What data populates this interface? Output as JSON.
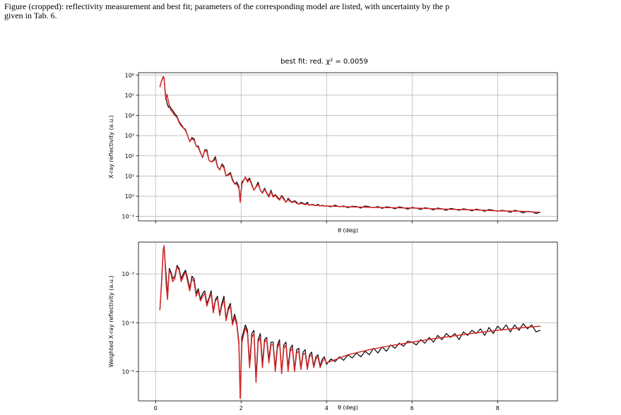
{
  "caption": {
    "line1": "Figure (cropped): reflectivity measurement and best fit; parameters of the corresponding model are listed, with uncertainty by the p",
    "line2": "given in Tab. 6."
  },
  "colors": {
    "measured": "#000000",
    "fit": "#d62728",
    "grid": "#b0b0b0"
  },
  "chart_data": [
    {
      "type": "line",
      "title": "best fit: red. χ² = 0.0059",
      "xlabel": "θ (deg)",
      "ylabel": "X-ray reflectivity (a.u.)",
      "yscale": "log",
      "xlim": [
        -0.4,
        9.4
      ],
      "ylim": [
        0.06,
        1300000
      ],
      "xticks": [
        0,
        2,
        4,
        6,
        8
      ],
      "show_xticklabels": false,
      "yticks": [
        0.1,
        1,
        10,
        100,
        1000,
        10000,
        100000,
        1000000
      ],
      "ytick_labels": [
        "10⁻¹",
        "10⁰",
        "10¹",
        "10²",
        "10³",
        "10⁴",
        "10⁵",
        "10⁶"
      ],
      "grid": true,
      "series": [
        {
          "color": "#000000",
          "style": "measured",
          "x": [
            0.1,
            0.14,
            0.18,
            0.2,
            0.22,
            0.24,
            0.27,
            0.3,
            0.33,
            0.36,
            0.4,
            0.45,
            0.5,
            0.55,
            0.6,
            0.65,
            0.7,
            0.75,
            0.8,
            0.85,
            0.9,
            0.95,
            1.0,
            1.05,
            1.1,
            1.15,
            1.2,
            1.25,
            1.3,
            1.35,
            1.4,
            1.45,
            1.5,
            1.55,
            1.6,
            1.65,
            1.7,
            1.75,
            1.8,
            1.85,
            1.9,
            1.95,
            1.98,
            2.02,
            2.1,
            2.15,
            2.2,
            2.25,
            2.3,
            2.35,
            2.4,
            2.45,
            2.5,
            2.55,
            2.6,
            2.65,
            2.7,
            2.75,
            2.8,
            2.85,
            2.9,
            2.95,
            3.0,
            3.05,
            3.1,
            3.15,
            3.2,
            3.25,
            3.3,
            3.35,
            3.4,
            3.45,
            3.5,
            3.55,
            3.6,
            3.65,
            3.7,
            3.75,
            3.8,
            3.85,
            3.9,
            3.95,
            4.0,
            4.1,
            4.2,
            4.3,
            4.4,
            4.5,
            4.6,
            4.7,
            4.8,
            4.9,
            5.0,
            5.1,
            5.2,
            5.3,
            5.4,
            5.5,
            5.6,
            5.7,
            5.8,
            5.9,
            6.0,
            6.1,
            6.2,
            6.3,
            6.4,
            6.5,
            6.6,
            6.7,
            6.8,
            6.9,
            7.0,
            7.1,
            7.2,
            7.3,
            7.4,
            7.5,
            7.6,
            7.7,
            7.8,
            7.9,
            8.0,
            8.1,
            8.2,
            8.3,
            8.4,
            8.5,
            8.6,
            8.7,
            8.8,
            8.9,
            9.0
          ],
          "y": [
            250000,
            500000,
            800000,
            650000,
            200000,
            90000,
            40000,
            25000,
            30000,
            22000,
            18000,
            12000,
            9000,
            5000,
            3500,
            2500,
            2000,
            1000,
            500,
            800,
            700,
            300,
            300,
            150,
            80,
            200,
            200,
            60,
            50,
            60,
            90,
            30,
            20,
            40,
            30,
            10,
            12,
            15,
            7,
            4,
            5,
            3,
            0.6,
            5,
            8,
            6,
            8,
            4,
            2,
            3,
            5,
            2,
            1.5,
            2.5,
            1.5,
            1.0,
            2.0,
            1.0,
            1.2,
            0.9,
            0.7,
            1.1,
            0.8,
            0.5,
            0.8,
            0.6,
            0.5,
            0.6,
            0.5,
            0.4,
            0.5,
            0.45,
            0.4,
            0.5,
            0.35,
            0.4,
            0.38,
            0.35,
            0.4,
            0.33,
            0.36,
            0.32,
            0.34,
            0.3,
            0.36,
            0.3,
            0.33,
            0.27,
            0.32,
            0.31,
            0.26,
            0.33,
            0.3,
            0.27,
            0.31,
            0.25,
            0.3,
            0.28,
            0.24,
            0.3,
            0.27,
            0.23,
            0.28,
            0.26,
            0.22,
            0.27,
            0.25,
            0.21,
            0.26,
            0.24,
            0.2,
            0.25,
            0.23,
            0.2,
            0.24,
            0.22,
            0.19,
            0.23,
            0.21,
            0.18,
            0.22,
            0.2,
            0.18,
            0.2,
            0.19,
            0.16,
            0.2,
            0.18,
            0.15,
            0.18,
            0.17,
            0.14,
            0.16
          ]
        },
        {
          "color": "#d62728",
          "style": "fit",
          "x": [
            0.1,
            0.14,
            0.18,
            0.2,
            0.22,
            0.24,
            0.27,
            0.3,
            0.33,
            0.36,
            0.4,
            0.45,
            0.5,
            0.55,
            0.6,
            0.65,
            0.7,
            0.75,
            0.8,
            0.85,
            0.9,
            0.95,
            1.0,
            1.05,
            1.1,
            1.15,
            1.2,
            1.25,
            1.3,
            1.35,
            1.4,
            1.45,
            1.5,
            1.55,
            1.6,
            1.65,
            1.7,
            1.75,
            1.8,
            1.85,
            1.9,
            1.95,
            1.98,
            2.02,
            2.1,
            2.15,
            2.2,
            2.25,
            2.3,
            2.35,
            2.4,
            2.45,
            2.5,
            2.55,
            2.6,
            2.65,
            2.7,
            2.75,
            2.8,
            2.85,
            2.9,
            2.95,
            3.0,
            3.05,
            3.1,
            3.15,
            3.2,
            3.25,
            3.3,
            3.35,
            3.4,
            3.45,
            3.5,
            3.55,
            3.6,
            3.65,
            3.7,
            3.75,
            3.8,
            3.85,
            3.9,
            3.95,
            4.0,
            4.5,
            5.0,
            5.5,
            6.0,
            6.5,
            7.0,
            7.5,
            8.0,
            8.5,
            9.0
          ],
          "y": [
            250000,
            520000,
            850000,
            700000,
            180000,
            60000,
            110000,
            50000,
            25000,
            18000,
            14000,
            10000,
            8000,
            4500,
            3000,
            2400,
            1800,
            1000,
            500,
            700,
            600,
            300,
            260,
            140,
            90,
            180,
            160,
            60,
            50,
            55,
            70,
            28,
            20,
            35,
            25,
            10,
            11,
            13,
            6,
            4,
            4,
            2.5,
            0.5,
            4,
            9,
            5,
            7,
            3.5,
            2,
            2.8,
            4,
            2,
            1.4,
            2.2,
            1.4,
            0.9,
            1.7,
            0.9,
            1.1,
            0.8,
            0.65,
            1.0,
            0.7,
            0.5,
            0.7,
            0.55,
            0.48,
            0.55,
            0.45,
            0.4,
            0.45,
            0.42,
            0.38,
            0.42,
            0.36,
            0.38,
            0.36,
            0.34,
            0.36,
            0.33,
            0.34,
            0.32,
            0.33,
            0.3,
            0.28,
            0.27,
            0.26,
            0.24,
            0.22,
            0.21,
            0.19,
            0.18,
            0.16
          ]
        }
      ]
    },
    {
      "type": "line",
      "title": "",
      "xlabel": "θ (deg)",
      "ylabel": "Weighted X-ray reflectivity (a.u.)",
      "yscale": "log",
      "xlim": [
        -0.4,
        9.4
      ],
      "ylim": [
        2.5e-06,
        0.0045
      ],
      "xticks": [
        0,
        2,
        4,
        6,
        8
      ],
      "show_xticklabels": true,
      "xtick_labels": [
        "0",
        "2",
        "4",
        "6",
        "8"
      ],
      "yticks": [
        1e-05,
        0.0001,
        0.001
      ],
      "ytick_labels": [
        "10⁻⁵",
        "10⁻⁴",
        "10⁻³"
      ],
      "grid": true,
      "series": [
        {
          "color": "#000000",
          "style": "measured",
          "x": [
            0.1,
            0.14,
            0.18,
            0.2,
            0.22,
            0.25,
            0.28,
            0.32,
            0.36,
            0.4,
            0.45,
            0.5,
            0.55,
            0.6,
            0.65,
            0.7,
            0.75,
            0.8,
            0.85,
            0.9,
            0.95,
            1.0,
            1.05,
            1.1,
            1.15,
            1.2,
            1.25,
            1.3,
            1.35,
            1.4,
            1.45,
            1.5,
            1.55,
            1.6,
            1.65,
            1.7,
            1.75,
            1.8,
            1.85,
            1.9,
            1.95,
            1.98,
            2.02,
            2.1,
            2.15,
            2.2,
            2.25,
            2.3,
            2.35,
            2.4,
            2.45,
            2.5,
            2.55,
            2.6,
            2.65,
            2.7,
            2.75,
            2.8,
            2.85,
            2.9,
            2.95,
            3.0,
            3.05,
            3.1,
            3.15,
            3.2,
            3.25,
            3.3,
            3.35,
            3.4,
            3.45,
            3.5,
            3.55,
            3.6,
            3.65,
            3.7,
            3.75,
            3.8,
            3.85,
            3.9,
            3.95,
            4.0,
            4.1,
            4.2,
            4.3,
            4.4,
            4.5,
            4.6,
            4.7,
            4.8,
            4.9,
            5.0,
            5.1,
            5.2,
            5.3,
            5.4,
            5.5,
            5.6,
            5.7,
            5.8,
            5.9,
            6.0,
            6.1,
            6.2,
            6.3,
            6.4,
            6.5,
            6.6,
            6.7,
            6.8,
            6.9,
            7.0,
            7.1,
            7.2,
            7.3,
            7.4,
            7.5,
            7.6,
            7.7,
            7.8,
            7.9,
            8.0,
            8.1,
            8.2,
            8.3,
            8.4,
            8.5,
            8.6,
            8.7,
            8.8,
            8.9,
            9.0
          ],
          "y": [
            0.00018,
            0.0006,
            0.003,
            0.0035,
            0.002,
            0.0009,
            0.00035,
            0.0013,
            0.0011,
            0.0008,
            0.0009,
            0.0015,
            0.0013,
            0.0008,
            0.001,
            0.0012,
            0.0008,
            0.0005,
            0.0009,
            0.0008,
            0.0004,
            0.0005,
            0.0003,
            0.0004,
            0.00045,
            0.00025,
            0.00032,
            0.00045,
            0.00018,
            0.0003,
            0.00035,
            0.00015,
            0.00025,
            0.00035,
            0.00012,
            0.0002,
            0.00025,
            0.0001,
            0.00015,
            0.0001,
            4e-05,
            3e-06,
            5e-05,
            9e-05,
            7e-05,
            1.5e-05,
            6e-05,
            7e-05,
            8e-06,
            4.5e-05,
            6e-05,
            1.5e-05,
            4.5e-05,
            5e-05,
            1.8e-05,
            4e-05,
            4e-05,
            1.2e-05,
            3.5e-05,
            4.5e-05,
            1e-05,
            3.5e-05,
            4e-05,
            1.2e-05,
            3e-05,
            3.5e-05,
            1.1e-05,
            2.8e-05,
            3e-05,
            1.2e-05,
            2.5e-05,
            2.8e-05,
            1.2e-05,
            2.2e-05,
            2.5e-05,
            1.3e-05,
            2e-05,
            2.2e-05,
            1.3e-05,
            1.8e-05,
            2e-05,
            1.4e-05,
            1.8e-05,
            1.6e-05,
            2e-05,
            1.7e-05,
            2.2e-05,
            1.9e-05,
            2.4e-05,
            2e-05,
            2.6e-05,
            2.2e-05,
            3e-05,
            2.4e-05,
            3.2e-05,
            2.6e-05,
            3.5e-05,
            3e-05,
            3.8e-05,
            3.3e-05,
            4.2e-05,
            4e-05,
            3.5e-05,
            4.5e-05,
            3.8e-05,
            5e-05,
            4e-05,
            5.5e-05,
            4.5e-05,
            6e-05,
            5e-05,
            6e-05,
            4.5e-05,
            6.5e-05,
            5.5e-05,
            7e-05,
            6e-05,
            7.5e-05,
            5.5e-05,
            8e-05,
            6e-05,
            8.5e-05,
            7e-05,
            9e-05,
            6.5e-05,
            9e-05,
            7e-05,
            9.5e-05,
            7.5e-05,
            9e-05,
            6.5e-05,
            7e-05
          ]
        },
        {
          "color": "#d62728",
          "style": "fit",
          "x": [
            0.1,
            0.14,
            0.18,
            0.2,
            0.22,
            0.25,
            0.28,
            0.32,
            0.36,
            0.4,
            0.45,
            0.5,
            0.55,
            0.6,
            0.65,
            0.7,
            0.75,
            0.8,
            0.85,
            0.9,
            0.95,
            1.0,
            1.05,
            1.1,
            1.15,
            1.2,
            1.25,
            1.3,
            1.35,
            1.4,
            1.45,
            1.5,
            1.55,
            1.6,
            1.65,
            1.7,
            1.75,
            1.8,
            1.85,
            1.9,
            1.95,
            1.98,
            2.02,
            2.1,
            2.15,
            2.2,
            2.25,
            2.3,
            2.35,
            2.4,
            2.45,
            2.5,
            2.55,
            2.6,
            2.65,
            2.7,
            2.75,
            2.8,
            2.85,
            2.9,
            2.95,
            3.0,
            3.05,
            3.1,
            3.15,
            3.2,
            3.25,
            3.3,
            3.35,
            3.4,
            3.45,
            3.5,
            3.55,
            3.6,
            3.65,
            3.7,
            3.75,
            3.8,
            3.85,
            3.9,
            3.95,
            4.0,
            4.5,
            5.0,
            5.5,
            6.0,
            6.5,
            7.0,
            7.5,
            8.0,
            8.5,
            9.0
          ],
          "y": [
            0.00018,
            0.0007,
            0.0032,
            0.0038,
            0.0018,
            0.0006,
            0.0003,
            0.0012,
            0.001,
            0.0007,
            0.0008,
            0.0014,
            0.0012,
            0.0007,
            0.0009,
            0.0011,
            0.0007,
            0.00045,
            0.0008,
            0.0007,
            0.00035,
            0.00045,
            0.00028,
            0.00035,
            0.0004,
            0.00022,
            0.0003,
            0.0004,
            0.00016,
            0.00028,
            0.00032,
            0.00014,
            0.00022,
            0.0003,
            0.00011,
            0.00018,
            0.00022,
            9e-05,
            0.00013,
            9e-05,
            3.5e-05,
            2.8e-06,
            4e-05,
            8e-05,
            6e-05,
            1.2e-05,
            5e-05,
            6e-05,
            6e-06,
            4e-05,
            5e-05,
            1.2e-05,
            4e-05,
            4.5e-05,
            1.5e-05,
            3.5e-05,
            3.5e-05,
            1e-05,
            3e-05,
            4e-05,
            9e-06,
            3e-05,
            3.5e-05,
            1e-05,
            2.6e-05,
            3e-05,
            1e-05,
            2.4e-05,
            2.6e-05,
            1.1e-05,
            2.2e-05,
            2.4e-05,
            1.1e-05,
            2e-05,
            2.2e-05,
            1.2e-05,
            1.8e-05,
            2e-05,
            1.2e-05,
            1.6e-05,
            1.8e-05,
            1.5e-05,
            2.2e-05,
            2.8e-05,
            3.4e-05,
            4e-05,
            4.7e-05,
            5.4e-05,
            6.2e-05,
            7e-05,
            7.8e-05,
            8.5e-05
          ]
        }
      ]
    }
  ]
}
